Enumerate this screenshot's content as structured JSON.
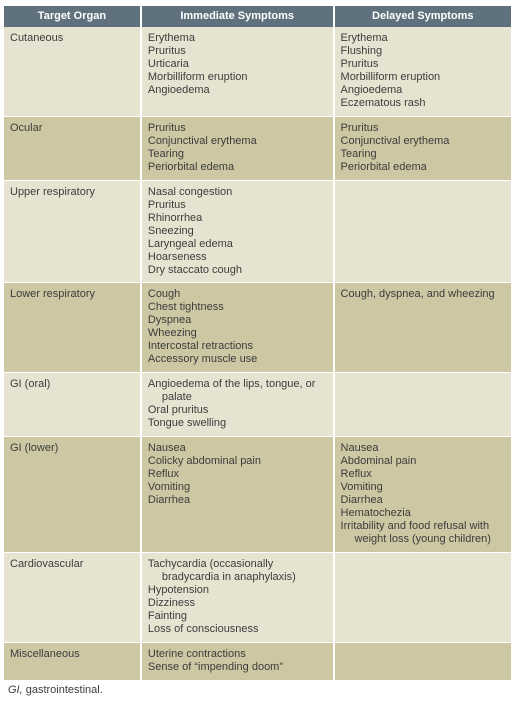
{
  "colors": {
    "header_bg": "#60717e",
    "header_fg": "#ffffff",
    "row_a_bg": "#e6e4d1",
    "row_b_bg": "#cdc7a3",
    "body_fg": "#3c3c3c",
    "rule": "#ffffff"
  },
  "typography": {
    "font_family": "Arial, Helvetica, sans-serif",
    "header_fontsize_pt": 8.5,
    "body_fontsize_pt": 8.5,
    "header_fontweight": "bold"
  },
  "columns": [
    {
      "label": "Target Organ",
      "width_pct": 27,
      "align": "center"
    },
    {
      "label": "Immediate Symptoms",
      "width_pct": 38,
      "align": "center"
    },
    {
      "label": "Delayed Symptoms",
      "width_pct": 35,
      "align": "center"
    }
  ],
  "row_stripe": [
    "a",
    "b",
    "a",
    "b",
    "a",
    "b",
    "a",
    "b"
  ],
  "rows": [
    {
      "organ": "Cutaneous",
      "immediate": [
        "Erythema",
        "Pruritus",
        "Urticaria",
        "Morbilliform eruption",
        "Angioedema"
      ],
      "delayed": [
        "Erythema",
        "Flushing",
        "Pruritus",
        "Morbilliform eruption",
        "Angioedema",
        "Eczematous rash"
      ]
    },
    {
      "organ": "Ocular",
      "immediate": [
        "Pruritus",
        "Conjunctival erythema",
        "Tearing",
        "Periorbital edema"
      ],
      "delayed": [
        "Pruritus",
        "Conjunctival erythema",
        "Tearing",
        "Periorbital edema"
      ]
    },
    {
      "organ": "Upper respiratory",
      "immediate": [
        "Nasal congestion",
        "Pruritus",
        "Rhinorrhea",
        "Sneezing",
        "Laryngeal edema",
        "Hoarseness",
        "Dry staccato cough"
      ],
      "delayed": []
    },
    {
      "organ": "Lower respiratory",
      "immediate": [
        "Cough",
        "Chest tightness",
        "Dyspnea",
        "Wheezing",
        "Intercostal retractions",
        "Accessory muscle use"
      ],
      "delayed": [
        "Cough, dyspnea, and wheezing"
      ]
    },
    {
      "organ": "GI (oral)",
      "immediate": [
        "Angioedema of the lips, tongue, or palate",
        "Oral pruritus",
        "Tongue swelling"
      ],
      "delayed": []
    },
    {
      "organ": "GI (lower)",
      "immediate": [
        "Nausea",
        "Colicky abdominal pain",
        "Reflux",
        "Vomiting",
        "Diarrhea"
      ],
      "delayed": [
        "Nausea",
        "Abdominal pain",
        "Reflux",
        "Vomiting",
        "Diarrhea",
        "Hematochezia",
        "Irritability and food refusal with weight loss (young children)"
      ]
    },
    {
      "organ": "Cardiovascular",
      "immediate": [
        "Tachycardia (occasionally bradycardia in anaphylaxis)",
        "Hypotension",
        "Dizziness",
        "Fainting",
        "Loss of consciousness"
      ],
      "delayed": []
    },
    {
      "organ": "Miscellaneous",
      "immediate": [
        "Uterine contractions",
        "Sense of “impending doom”"
      ],
      "delayed": []
    }
  ],
  "footnote": {
    "abbr": "GI,",
    "text": " gastrointestinal."
  }
}
